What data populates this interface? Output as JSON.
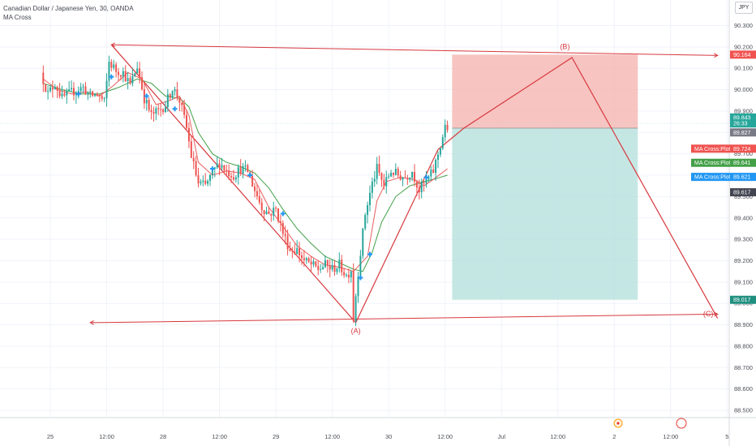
{
  "header": {
    "symbol": "Canadian Dollar / Japanese Yen, 30, OANDA",
    "indicator": "MA Cross",
    "currency": "JPY"
  },
  "colors": {
    "pattern": "#d7383d",
    "bull": "#26a69a",
    "bear": "#ef5350",
    "ma_fast": "#e85d5d",
    "ma_slow": "#43a047",
    "cross_marker": "#2196f3",
    "target_zone": "#f5b5b2",
    "profit_zone": "#b2dfdb"
  },
  "chart_data": {
    "type": "candlestick",
    "y_axis": {
      "min": 88.45,
      "max": 90.33,
      "ticks": [
        "90.300",
        "90.200",
        "90.100",
        "90.000",
        "89.900",
        "89.800",
        "89.700",
        "89.600",
        "89.500",
        "89.400",
        "89.300",
        "89.200",
        "89.100",
        "89.000",
        "88.900",
        "88.800",
        "88.700",
        "88.600",
        "88.500"
      ]
    },
    "x_axis": {
      "tick_labels": [
        {
          "label": "25",
          "t": 3
        },
        {
          "label": "12:00",
          "t": 27
        },
        {
          "label": "28",
          "t": 51
        },
        {
          "label": "12:00",
          "t": 75
        },
        {
          "label": "29",
          "t": 99
        },
        {
          "label": "12:00",
          "t": 123
        },
        {
          "label": "30",
          "t": 147
        },
        {
          "label": "12:00",
          "t": 171
        },
        {
          "label": "Jul",
          "t": 195
        },
        {
          "label": "12:00",
          "t": 219
        },
        {
          "label": "2",
          "t": 243
        },
        {
          "label": "12:00",
          "t": 267
        },
        {
          "label": "5",
          "t": 291
        }
      ]
    },
    "price_path": [
      [
        0,
        90.08
      ],
      [
        3,
        89.98
      ],
      [
        6,
        90.03
      ],
      [
        9,
        89.96
      ],
      [
        12,
        89.98
      ],
      [
        15,
        90.0
      ],
      [
        18,
        90.01
      ],
      [
        21,
        89.97
      ],
      [
        24,
        89.98
      ],
      [
        27,
        89.94
      ],
      [
        29,
        90.13
      ],
      [
        32,
        90.09
      ],
      [
        35,
        90.08
      ],
      [
        38,
        90.02
      ],
      [
        41,
        90.11
      ],
      [
        44,
        89.96
      ],
      [
        47,
        89.88
      ],
      [
        50,
        89.9
      ],
      [
        53,
        89.93
      ],
      [
        56,
        90.01
      ],
      [
        59,
        89.95
      ],
      [
        62,
        89.82
      ],
      [
        64,
        89.69
      ],
      [
        67,
        89.56
      ],
      [
        70,
        89.55
      ],
      [
        73,
        89.61
      ],
      [
        76,
        89.66
      ],
      [
        79,
        89.62
      ],
      [
        82,
        89.6
      ],
      [
        85,
        89.63
      ],
      [
        88,
        89.62
      ],
      [
        91,
        89.53
      ],
      [
        94,
        89.45
      ],
      [
        97,
        89.42
      ],
      [
        100,
        89.44
      ],
      [
        103,
        89.33
      ],
      [
        106,
        89.25
      ],
      [
        109,
        89.25
      ],
      [
        112,
        89.2
      ],
      [
        115,
        89.18
      ],
      [
        118,
        89.16
      ],
      [
        121,
        89.18
      ],
      [
        124,
        89.16
      ],
      [
        127,
        89.18
      ],
      [
        130,
        89.13
      ],
      [
        132,
        89.16
      ],
      [
        133,
        88.93
      ],
      [
        135,
        89.15
      ],
      [
        138,
        89.42
      ],
      [
        141,
        89.56
      ],
      [
        143,
        89.63
      ],
      [
        146,
        89.55
      ],
      [
        149,
        89.62
      ],
      [
        152,
        89.6
      ],
      [
        155,
        89.59
      ],
      [
        158,
        89.62
      ],
      [
        161,
        89.53
      ],
      [
        164,
        89.57
      ],
      [
        167,
        89.62
      ],
      [
        170,
        89.74
      ],
      [
        172,
        89.82
      ]
    ],
    "ma_fast": [
      [
        0,
        90.05
      ],
      [
        6,
        90.0
      ],
      [
        12,
        89.98
      ],
      [
        18,
        89.99
      ],
      [
        24,
        89.97
      ],
      [
        30,
        90.02
      ],
      [
        36,
        90.08
      ],
      [
        42,
        90.05
      ],
      [
        48,
        89.93
      ],
      [
        54,
        89.95
      ],
      [
        58,
        89.97
      ],
      [
        62,
        89.88
      ],
      [
        66,
        89.66
      ],
      [
        72,
        89.6
      ],
      [
        78,
        89.62
      ],
      [
        84,
        89.61
      ],
      [
        90,
        89.58
      ],
      [
        96,
        89.45
      ],
      [
        102,
        89.36
      ],
      [
        108,
        89.27
      ],
      [
        114,
        89.22
      ],
      [
        120,
        89.18
      ],
      [
        126,
        89.17
      ],
      [
        132,
        89.15
      ],
      [
        138,
        89.22
      ],
      [
        142,
        89.48
      ],
      [
        146,
        89.57
      ],
      [
        152,
        89.59
      ],
      [
        158,
        89.58
      ],
      [
        162,
        89.55
      ],
      [
        166,
        89.58
      ],
      [
        172,
        89.63
      ]
    ],
    "ma_slow": [
      [
        0,
        90.03
      ],
      [
        8,
        90.0
      ],
      [
        16,
        89.98
      ],
      [
        24,
        89.98
      ],
      [
        32,
        90.01
      ],
      [
        40,
        90.05
      ],
      [
        46,
        90.03
      ],
      [
        52,
        89.97
      ],
      [
        58,
        89.96
      ],
      [
        62,
        89.92
      ],
      [
        66,
        89.8
      ],
      [
        72,
        89.7
      ],
      [
        78,
        89.66
      ],
      [
        84,
        89.64
      ],
      [
        90,
        89.61
      ],
      [
        96,
        89.54
      ],
      [
        102,
        89.44
      ],
      [
        108,
        89.35
      ],
      [
        114,
        89.28
      ],
      [
        120,
        89.22
      ],
      [
        126,
        89.19
      ],
      [
        132,
        89.16
      ],
      [
        136,
        89.15
      ],
      [
        140,
        89.24
      ],
      [
        144,
        89.38
      ],
      [
        150,
        89.5
      ],
      [
        156,
        89.55
      ],
      [
        162,
        89.57
      ],
      [
        166,
        89.58
      ],
      [
        172,
        89.6
      ]
    ],
    "cross_markers": [
      [
        15,
        89.98
      ],
      [
        29,
        90.06
      ],
      [
        44,
        89.97
      ],
      [
        56,
        89.91
      ],
      [
        72,
        89.63
      ],
      [
        88,
        89.6
      ],
      [
        102,
        89.42
      ],
      [
        135,
        89.12
      ],
      [
        139,
        89.23
      ],
      [
        163,
        89.59
      ]
    ],
    "pattern": {
      "top_line": [
        [
          29,
          90.21
        ],
        [
          287,
          90.16
        ]
      ],
      "bottom_line": [
        [
          20,
          88.91
        ],
        [
          287,
          88.95
        ]
      ],
      "zigzag": [
        [
          29,
          90.21
        ],
        [
          133,
          88.91
        ],
        [
          168,
          89.72
        ],
        [
          179,
          89.82
        ],
        [
          225,
          90.15
        ],
        [
          287,
          88.93
        ]
      ],
      "labels": [
        {
          "text": "(B)",
          "t": 222,
          "y": 90.19
        },
        {
          "text": "(A)",
          "t": 133,
          "y": 88.86
        },
        {
          "text": "(C)",
          "t": 283,
          "y": 88.94
        }
      ]
    },
    "position": {
      "t_start": 174,
      "t_end": 253,
      "entry": 89.82,
      "target": 90.164,
      "stop": 89.017
    },
    "price_tags": [
      {
        "text": "90.164",
        "y": 90.164,
        "color": "#f05350"
      },
      {
        "text": "89.843",
        "y": 89.87,
        "color": "#26a69a"
      },
      {
        "text": "26:33",
        "y": 89.842,
        "color": "#26a69a"
      },
      {
        "text": "89.827",
        "y": 89.8,
        "color": "#787b86"
      },
      {
        "text": "MA Cross:Plot",
        "value": "89.724",
        "y": 89.724,
        "color": "#f05350"
      },
      {
        "text": "MA Cross:Plot",
        "value": "89.641",
        "y": 89.658,
        "color": "#43a047"
      },
      {
        "text": "MA Cross:Plot",
        "value": "89.621",
        "y": 89.592,
        "color": "#2196f3"
      },
      {
        "text": "89.617",
        "y": 89.52,
        "color": "#434651"
      },
      {
        "text": "89.017",
        "y": 89.017,
        "color": "#1f8f80"
      }
    ]
  }
}
